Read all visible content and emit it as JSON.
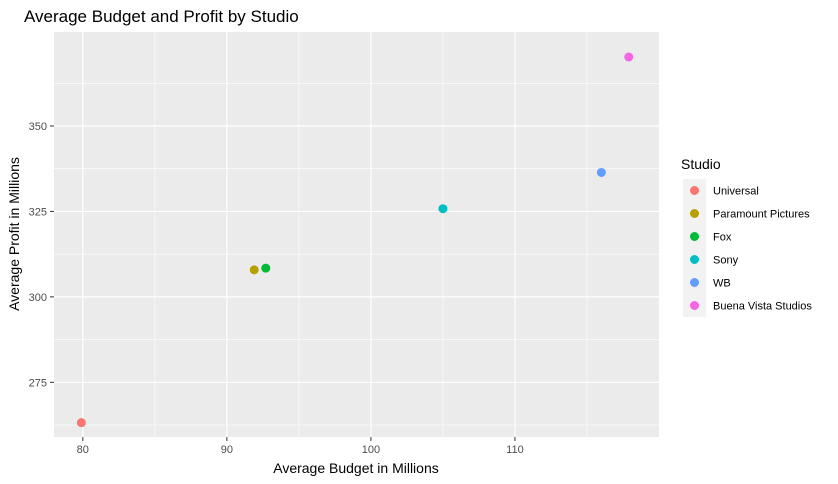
{
  "chart_data": {
    "type": "scatter",
    "title": "Average Budget and Profit by Studio",
    "xlabel": "Average Budget in Millions",
    "ylabel": "Average Profit in Millions",
    "xlim": [
      78,
      120
    ],
    "ylim": [
      259,
      377.5
    ],
    "x_ticks": [
      80,
      90,
      100,
      110
    ],
    "y_ticks": [
      275,
      300,
      325,
      350
    ],
    "grid": true,
    "legend": {
      "title": "Studio",
      "placement": "right"
    },
    "series": [
      {
        "name": "Universal",
        "color": "#F8766D",
        "x": 79.9,
        "y": 263.2
      },
      {
        "name": "Paramount Pictures",
        "color": "#B79F00",
        "x": 91.9,
        "y": 307.9
      },
      {
        "name": "Fox",
        "color": "#00BA38",
        "x": 92.7,
        "y": 308.4
      },
      {
        "name": "Sony",
        "color": "#00BFC4",
        "x": 105.0,
        "y": 325.8
      },
      {
        "name": "WB",
        "color": "#619CFF",
        "x": 116.0,
        "y": 336.4
      },
      {
        "name": "Buena Vista Studios",
        "color": "#F564E3",
        "x": 117.9,
        "y": 370.2
      }
    ]
  }
}
